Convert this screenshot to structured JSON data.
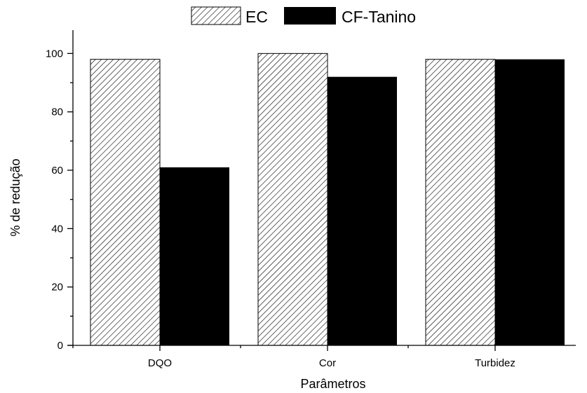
{
  "chart_data": {
    "type": "bar",
    "categories": [
      "DQO",
      "Cor",
      "Turbidez"
    ],
    "series": [
      {
        "name": "EC",
        "values": [
          98,
          100,
          98
        ],
        "pattern": "diagonal-hatch"
      },
      {
        "name": "CF-Tanino",
        "values": [
          61,
          92,
          98
        ],
        "color": "#000000"
      }
    ],
    "xlabel": "Parâmetros",
    "ylabel": "% de redução",
    "ylim": [
      0,
      108
    ],
    "yticks": [
      0,
      20,
      40,
      60,
      80,
      100
    ],
    "grid": false,
    "legend_position": "top"
  }
}
